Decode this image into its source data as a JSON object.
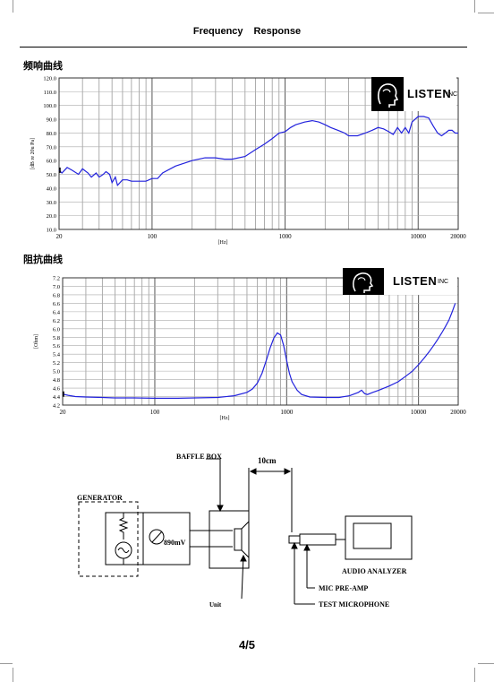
{
  "header": {
    "title_a": "Frequency",
    "title_b": "Response"
  },
  "freq_section": {
    "label": "频响曲线"
  },
  "imp_section": {
    "label": "阻抗曲线"
  },
  "logo": {
    "brand": "LISTEN",
    "suffix": "INC"
  },
  "chart_data": [
    {
      "type": "line",
      "title": "",
      "xlabel": "[Hz]",
      "ylabel": "[dB re 20u Pa]",
      "xscale": "log",
      "xlim": [
        20,
        20000
      ],
      "ylim": [
        10,
        120
      ],
      "xticks": [
        "20",
        "100",
        "1000",
        "10000",
        "20000"
      ],
      "yticks": [
        "10.0",
        "20.0",
        "30.0",
        "40.0",
        "50.0",
        "60.0",
        "70.0",
        "80.0",
        "90.0",
        "100.0",
        "110.0",
        "120.0"
      ],
      "grid": true,
      "color": "#2222dd",
      "x": [
        20,
        21,
        23,
        25,
        28,
        30,
        33,
        35,
        38,
        40,
        43,
        45,
        48,
        50,
        53,
        55,
        60,
        65,
        70,
        80,
        90,
        100,
        110,
        120,
        150,
        200,
        250,
        300,
        350,
        400,
        500,
        600,
        700,
        800,
        900,
        1000,
        1100,
        1200,
        1400,
        1600,
        1800,
        2000,
        2200,
        2500,
        2800,
        3000,
        3500,
        4000,
        4500,
        5000,
        5500,
        6000,
        6500,
        7000,
        7500,
        8000,
        8500,
        9000,
        10000,
        11000,
        12000,
        13000,
        14000,
        15000,
        16000,
        17000,
        18000,
        19000,
        20000
      ],
      "y": [
        53,
        51,
        55,
        53,
        50,
        54,
        51,
        48,
        51,
        48,
        50,
        52,
        50,
        44,
        48,
        42,
        46,
        46,
        45,
        45,
        45,
        47,
        47,
        51,
        56,
        60,
        62,
        62,
        61,
        61,
        63,
        68,
        72,
        76,
        80,
        81,
        84,
        86,
        88,
        89,
        88,
        86,
        84,
        82,
        80,
        78,
        78,
        80,
        82,
        84,
        83,
        81,
        79,
        84,
        80,
        84,
        80,
        88,
        92,
        92,
        91,
        85,
        80,
        78,
        80,
        82,
        82,
        80,
        80
      ]
    },
    {
      "type": "line",
      "title": "",
      "xlabel": "[Hz]",
      "ylabel": "[Ohm]",
      "xscale": "log",
      "xlim": [
        20,
        20000
      ],
      "ylim": [
        4.2,
        7.2
      ],
      "xticks": [
        "20",
        "100",
        "1000",
        "10000",
        "20000"
      ],
      "yticks": [
        "4.2",
        "4.4",
        "4.6",
        "4.8",
        "5.0",
        "5.2",
        "5.4",
        "5.6",
        "5.8",
        "6.0",
        "6.2",
        "6.4",
        "6.6",
        "6.8",
        "7.0",
        "7.2"
      ],
      "grid": true,
      "color": "#2222dd",
      "x": [
        20,
        22,
        25,
        30,
        40,
        50,
        70,
        100,
        150,
        200,
        300,
        400,
        500,
        550,
        600,
        650,
        700,
        750,
        800,
        850,
        900,
        950,
        1000,
        1050,
        1100,
        1200,
        1300,
        1500,
        2000,
        2500,
        3000,
        3500,
        3700,
        3900,
        4100,
        4500,
        5000,
        6000,
        7000,
        8000,
        9000,
        10000,
        11000,
        12000,
        13000,
        14000,
        15000,
        16000,
        17000,
        18000,
        19000
      ],
      "y": [
        4.46,
        4.43,
        4.4,
        4.39,
        4.38,
        4.37,
        4.37,
        4.36,
        4.36,
        4.37,
        4.38,
        4.42,
        4.5,
        4.58,
        4.72,
        4.95,
        5.25,
        5.55,
        5.78,
        5.9,
        5.85,
        5.6,
        5.25,
        4.95,
        4.75,
        4.55,
        4.45,
        4.39,
        4.38,
        4.38,
        4.42,
        4.5,
        4.55,
        4.47,
        4.45,
        4.5,
        4.55,
        4.65,
        4.75,
        4.88,
        5.0,
        5.15,
        5.3,
        5.45,
        5.6,
        5.75,
        5.9,
        6.05,
        6.2,
        6.4,
        6.6
      ]
    }
  ],
  "diagram": {
    "baffle_box": "BAFFLE BOX",
    "distance": "10cm",
    "generator": "GENERATOR",
    "voltage": "890mV",
    "unit": "Unit",
    "audio_analyzer": "AUDIO ANALYZER",
    "mic_preamp": "MIC PRE-AMP",
    "test_microphone": "TEST MICROPHONE"
  },
  "footer": {
    "page": "4/5"
  }
}
